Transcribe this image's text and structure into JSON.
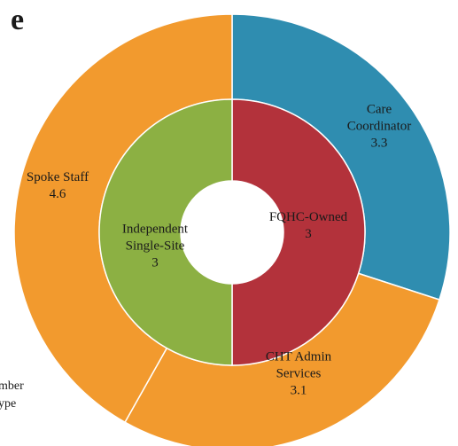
{
  "chart_data": {
    "type": "donut",
    "title": "e",
    "annotations": [
      "mber",
      "ype"
    ],
    "series": [
      {
        "name": "outer",
        "categories": [
          "Care Coordinator",
          "CHT Admin Services",
          "Spoke Staff"
        ],
        "values": [
          3.3,
          3.1,
          4.6
        ],
        "colors": [
          "#2f8db0",
          "#f29a2e",
          "#f29a2e"
        ]
      },
      {
        "name": "inner",
        "categories": [
          "FQHC-Owned",
          "Independent Single-Site"
        ],
        "values": [
          3,
          3
        ],
        "colors": [
          "#b3323b",
          "#8cb043"
        ]
      }
    ]
  }
}
